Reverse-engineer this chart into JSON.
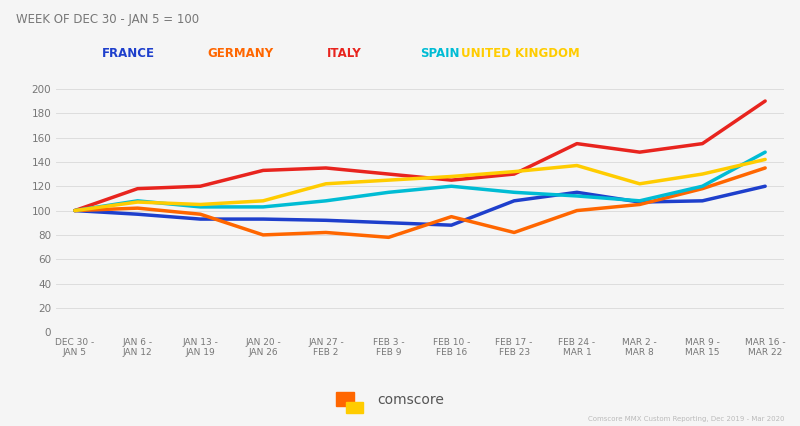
{
  "title": "WEEK OF DEC 30 - JAN 5 = 100",
  "x_labels": [
    "DEC 30 -\nJAN 5",
    "JAN 6 -\nJAN 12",
    "JAN 13 -\nJAN 19",
    "JAN 20 -\nJAN 26",
    "JAN 27 -\nFEB 2",
    "FEB 3 -\nFEB 9",
    "FEB 10 -\nFEB 16",
    "FEB 17 -\nFEB 23",
    "FEB 24 -\nMAR 1",
    "MAR 2 -\nMAR 8",
    "MAR 9 -\nMAR 15",
    "MAR 16 -\nMAR 22"
  ],
  "series": {
    "FRANCE": {
      "color": "#1e3fcc",
      "values": [
        100,
        97,
        93,
        93,
        92,
        90,
        88,
        108,
        115,
        107,
        108,
        120
      ]
    },
    "GERMANY": {
      "color": "#ff6600",
      "values": [
        100,
        102,
        97,
        80,
        82,
        78,
        95,
        82,
        100,
        105,
        118,
        135
      ]
    },
    "ITALY": {
      "color": "#e8241e",
      "values": [
        100,
        118,
        120,
        133,
        135,
        130,
        125,
        130,
        155,
        148,
        155,
        190
      ]
    },
    "SPAIN": {
      "color": "#00bcd4",
      "values": [
        100,
        108,
        103,
        103,
        108,
        115,
        120,
        115,
        112,
        108,
        120,
        148
      ]
    },
    "UNITED KINGDOM": {
      "color": "#ffcc00",
      "values": [
        100,
        107,
        105,
        108,
        122,
        125,
        128,
        132,
        137,
        122,
        130,
        142
      ]
    }
  },
  "legend_colors": {
    "FRANCE": "#1e3fcc",
    "GERMANY": "#ff6600",
    "ITALY": "#e8241e",
    "SPAIN": "#00bcd4",
    "UNITED KINGDOM": "#ffcc00"
  },
  "ylim": [
    0,
    210
  ],
  "yticks": [
    0,
    20,
    40,
    60,
    80,
    100,
    120,
    140,
    160,
    180,
    200
  ],
  "background_color": "#f5f5f5",
  "grid_color": "#dddddd",
  "footnote": "Comscore MMX Custom Reporting, Dec 2019 - Mar 2020",
  "comscore_logo_text": "comscore",
  "logo_orange": "#ff6600",
  "logo_yellow": "#ffcc00",
  "logo_cyan": "#00bcd4"
}
